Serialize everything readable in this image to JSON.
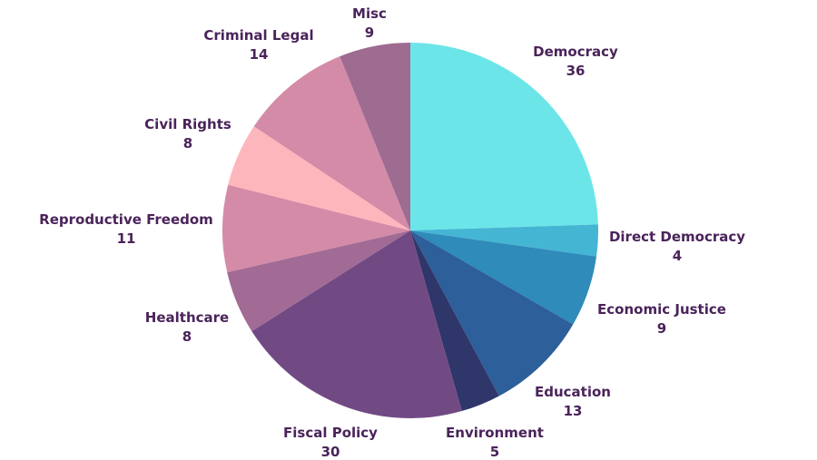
{
  "chart_data": {
    "type": "pie",
    "title": "",
    "label_color": "#4a235a",
    "start_angle_deg": 0,
    "direction": "clockwise",
    "slices": [
      {
        "label": "Democracy",
        "value": 36,
        "color": "#6ce5e8"
      },
      {
        "label": "Direct Democracy",
        "value": 4,
        "color": "#45b5d4"
      },
      {
        "label": "Economic Justice",
        "value": 9,
        "color": "#2e8bba"
      },
      {
        "label": "Education",
        "value": 13,
        "color": "#2d5f9a"
      },
      {
        "label": "Environment",
        "value": 5,
        "color": "#2f3669"
      },
      {
        "label": "Fiscal Policy",
        "value": 30,
        "color": "#714a84"
      },
      {
        "label": "Healthcare",
        "value": 8,
        "color": "#a16b95"
      },
      {
        "label": "Reproductive Freedom",
        "value": 11,
        "color": "#d48ba8"
      },
      {
        "label": "Civil Rights",
        "value": 8,
        "color": "#feb6bd"
      },
      {
        "label": "Criminal Legal",
        "value": 14,
        "color": "#d48ba8"
      },
      {
        "label": "Misc",
        "value": 9,
        "color": "#9e6b91"
      }
    ]
  }
}
